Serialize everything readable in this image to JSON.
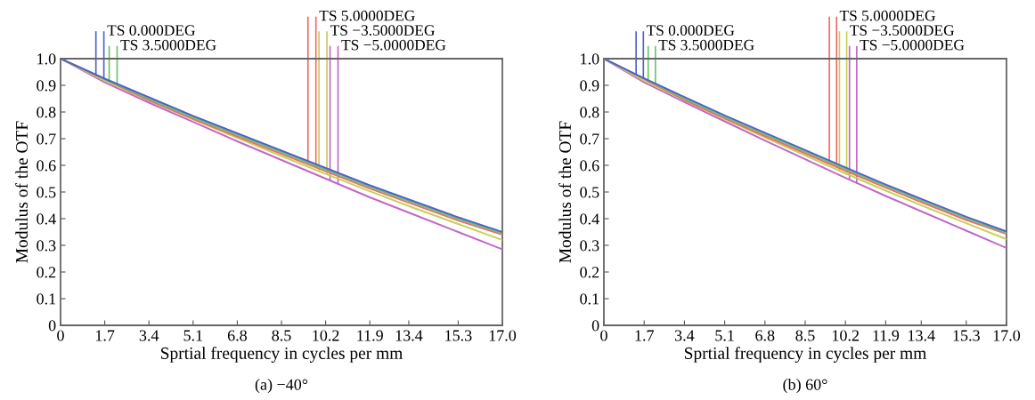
{
  "chart_data": [
    {
      "type": "line",
      "xlabel": "Sprtial frequency in cycles per mm",
      "ylabel": "Modulus of the OTF",
      "annotations": [
        "(a) −40°"
      ],
      "x": [
        0,
        1.7,
        3.4,
        5.1,
        6.8,
        8.5,
        10.2,
        11.9,
        13.6,
        15.3,
        17
      ],
      "xlim": [
        0,
        17
      ],
      "xticks": [
        0,
        1.7,
        3.4,
        5.1,
        6.8,
        8.5,
        10.2,
        11.9,
        13.4,
        15.3,
        {
          "value": 17,
          "label": "17.0"
        }
      ],
      "ylim": [
        0,
        1
      ],
      "yticks": [
        0,
        0.1,
        0.2,
        0.3,
        0.4,
        0.5,
        0.6,
        0.7,
        0.8,
        0.9,
        {
          "value": 1,
          "label": "1.0"
        }
      ],
      "series": [
        {
          "name": "TS 0.000DEG",
          "color": "#4f63c9",
          "values": [
            1,
            0.925,
            0.855,
            0.785,
            0.72,
            0.655,
            0.59,
            0.525,
            0.465,
            0.405,
            0.35
          ]
        },
        {
          "name": "TS 3.5000DEG",
          "color": "#6cc46c",
          "values": [
            1,
            0.924,
            0.849,
            0.779,
            0.714,
            0.649,
            0.584,
            0.519,
            0.459,
            0.399,
            0.345
          ]
        },
        {
          "name": "TS 5.0000DEG",
          "color": "#f06a6a",
          "values": [
            1,
            0.923,
            0.844,
            0.774,
            0.708,
            0.643,
            0.578,
            0.513,
            0.453,
            0.393,
            0.34
          ]
        },
        {
          "name": "TS −3.5000DEG",
          "color": "#c8cf5a",
          "values": [
            1,
            0.917,
            0.843,
            0.772,
            0.703,
            0.635,
            0.568,
            0.503,
            0.44,
            0.38,
            0.32
          ]
        },
        {
          "name": "TS −5.0000DEG",
          "color": "#c168c8",
          "values": [
            1,
            0.911,
            0.835,
            0.763,
            0.69,
            0.62,
            0.55,
            0.48,
            0.415,
            0.35,
            0.285
          ]
        }
      ]
    },
    {
      "type": "line",
      "xlabel": "Sprtial frequency in cycles per mm",
      "ylabel": "Modulus of the OTF",
      "annotations": [
        "(b) 60°"
      ],
      "x": [
        0,
        1.7,
        3.4,
        5.1,
        6.8,
        8.5,
        10.2,
        11.9,
        13.6,
        15.3,
        17
      ],
      "xlim": [
        0,
        17
      ],
      "xticks": [
        0,
        1.7,
        3.4,
        5.1,
        6.8,
        8.5,
        10.2,
        11.9,
        13.4,
        15.3,
        {
          "value": 17,
          "label": "17.0"
        }
      ],
      "ylim": [
        0,
        1
      ],
      "yticks": [
        0,
        0.1,
        0.2,
        0.3,
        0.4,
        0.5,
        0.6,
        0.7,
        0.8,
        0.9,
        {
          "value": 1,
          "label": "1.0"
        }
      ],
      "series": [
        {
          "name": "TS 0.000DEG",
          "color": "#4f63c9",
          "values": [
            1,
            0.926,
            0.856,
            0.787,
            0.722,
            0.657,
            0.592,
            0.528,
            0.467,
            0.407,
            0.352
          ]
        },
        {
          "name": "TS 3.5000DEG",
          "color": "#6cc46c",
          "values": [
            1,
            0.925,
            0.85,
            0.781,
            0.716,
            0.651,
            0.586,
            0.522,
            0.461,
            0.401,
            0.347
          ]
        },
        {
          "name": "TS 5.0000DEG",
          "color": "#f06a6a",
          "values": [
            1,
            0.924,
            0.845,
            0.776,
            0.71,
            0.645,
            0.58,
            0.516,
            0.455,
            0.395,
            0.343
          ]
        },
        {
          "name": "TS −3.5000DEG",
          "color": "#c8cf5a",
          "values": [
            1,
            0.917,
            0.845,
            0.774,
            0.705,
            0.637,
            0.57,
            0.505,
            0.443,
            0.383,
            0.323
          ]
        },
        {
          "name": "TS −5.0000DEG",
          "color": "#c168c8",
          "values": [
            1,
            0.911,
            0.837,
            0.765,
            0.693,
            0.623,
            0.553,
            0.485,
            0.42,
            0.355,
            0.29
          ]
        }
      ]
    }
  ]
}
